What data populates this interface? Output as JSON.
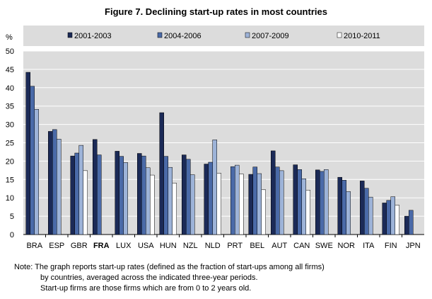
{
  "chart_data": {
    "type": "bar",
    "title": "Figure 7.  Declining start-up rates in most countries",
    "ylabel": "%",
    "ylim": [
      0,
      50
    ],
    "yticks": [
      0,
      5,
      10,
      15,
      20,
      25,
      30,
      35,
      40,
      45,
      50
    ],
    "grid": true,
    "legend_position": "top",
    "categories": [
      "BRA",
      "ESP",
      "GBR",
      "FRA",
      "LUX",
      "USA",
      "HUN",
      "NZL",
      "NLD",
      "PRT",
      "BEL",
      "AUT",
      "CAN",
      "SWE",
      "NOR",
      "ITA",
      "FIN",
      "JPN"
    ],
    "highlight_category": "FRA",
    "highlight_color": "#c0143c",
    "series": [
      {
        "name": "2001-2003",
        "color": "#1b2a57",
        "values": [
          44.2,
          28.1,
          21.4,
          25.9,
          22.7,
          22.1,
          33.2,
          21.7,
          19.2,
          null,
          16.4,
          22.8,
          19.0,
          17.6,
          15.6,
          14.6,
          8.6,
          5.0
        ]
      },
      {
        "name": "2004-2006",
        "color": "#4a6aa8",
        "values": [
          40.4,
          28.6,
          22.2,
          21.7,
          21.3,
          21.4,
          21.3,
          20.5,
          19.7,
          18.5,
          18.4,
          18.4,
          17.7,
          17.2,
          14.8,
          12.6,
          9.3,
          6.6
        ]
      },
      {
        "name": "2007-2009",
        "color": "#9db3d8",
        "values": [
          34.1,
          26.0,
          24.3,
          null,
          19.6,
          18.2,
          18.3,
          16.3,
          25.8,
          18.9,
          16.6,
          17.4,
          15.2,
          17.7,
          11.7,
          10.2,
          10.3,
          null
        ]
      },
      {
        "name": "2010-2011",
        "color": "#ffffff",
        "values": [
          null,
          null,
          17.4,
          null,
          null,
          16.2,
          14.0,
          null,
          16.7,
          16.5,
          12.2,
          null,
          12.1,
          null,
          null,
          null,
          8.0,
          null
        ]
      }
    ]
  },
  "note": {
    "line1": "Note:  The graph reports start-up rates (defined as the fraction of start-ups among all firms)",
    "line2": "by countries, averaged across the indicated three-year periods.",
    "line3": "Start-up firms are those firms which are from 0 to 2 years old."
  }
}
